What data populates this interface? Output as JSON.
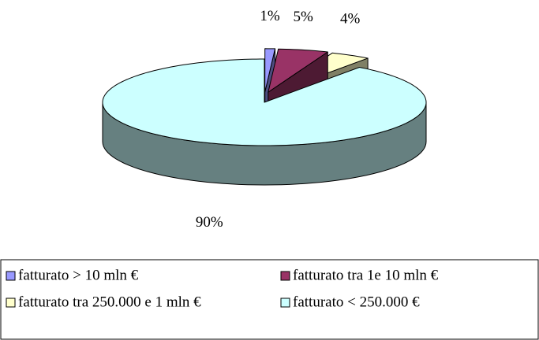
{
  "chart_data": {
    "type": "pie",
    "categories": [
      "fatturato > 10 mln €",
      "fatturato tra 1e 10 mln €",
      "fatturato tra 250.000 e 1 mln €",
      "fatturato < 250.000 €"
    ],
    "values": [
      1,
      5,
      4,
      90
    ],
    "value_labels": [
      "1%",
      "5%",
      "4%",
      "90%"
    ],
    "colors": [
      "#9999ff",
      "#993366",
      "#ffffcc",
      "#ccffff"
    ]
  }
}
